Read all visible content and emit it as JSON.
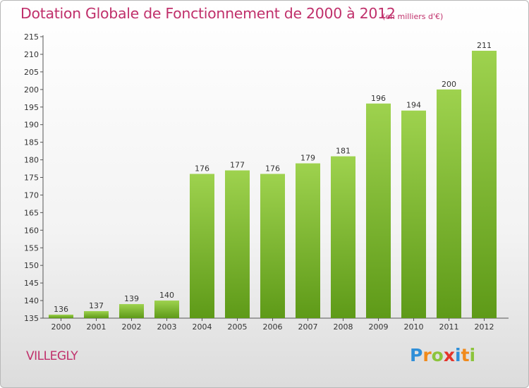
{
  "title": "Dotation Globale de Fonctionnement de 2000 à 2012",
  "subtitle": "(en milliers d'€)",
  "town": "VILLEGLY",
  "logo": {
    "letters": [
      "P",
      "r",
      "o",
      "x",
      "i",
      "t",
      "i"
    ],
    "colors": [
      "#2f8fd8",
      "#f08a1c",
      "#8cc43c",
      "#e5342a",
      "#2f8fd8",
      "#f08a1c",
      "#8cc43c"
    ]
  },
  "colors": {
    "title": "#c0306b",
    "bar_top": "#9ed24e",
    "bar_bottom": "#5e9a18",
    "grid": "#d0d0d0"
  },
  "chart_data": {
    "type": "bar",
    "categories": [
      "2000",
      "2001",
      "2002",
      "2003",
      "2004",
      "2005",
      "2006",
      "2007",
      "2008",
      "2009",
      "2010",
      "2011",
      "2012"
    ],
    "values": [
      136,
      137,
      139,
      140,
      176,
      177,
      176,
      179,
      181,
      196,
      194,
      200,
      211
    ],
    "data_labels": [
      "136",
      "137",
      "139",
      "140",
      "176",
      "177",
      "176",
      "179",
      "181",
      "196",
      "194",
      "200",
      "211"
    ],
    "ylim": [
      135,
      215
    ],
    "yticks": [
      135,
      140,
      145,
      150,
      155,
      160,
      165,
      170,
      175,
      180,
      185,
      190,
      195,
      200,
      205,
      210,
      215
    ],
    "xlabel": "",
    "ylabel": "",
    "grid": false
  }
}
